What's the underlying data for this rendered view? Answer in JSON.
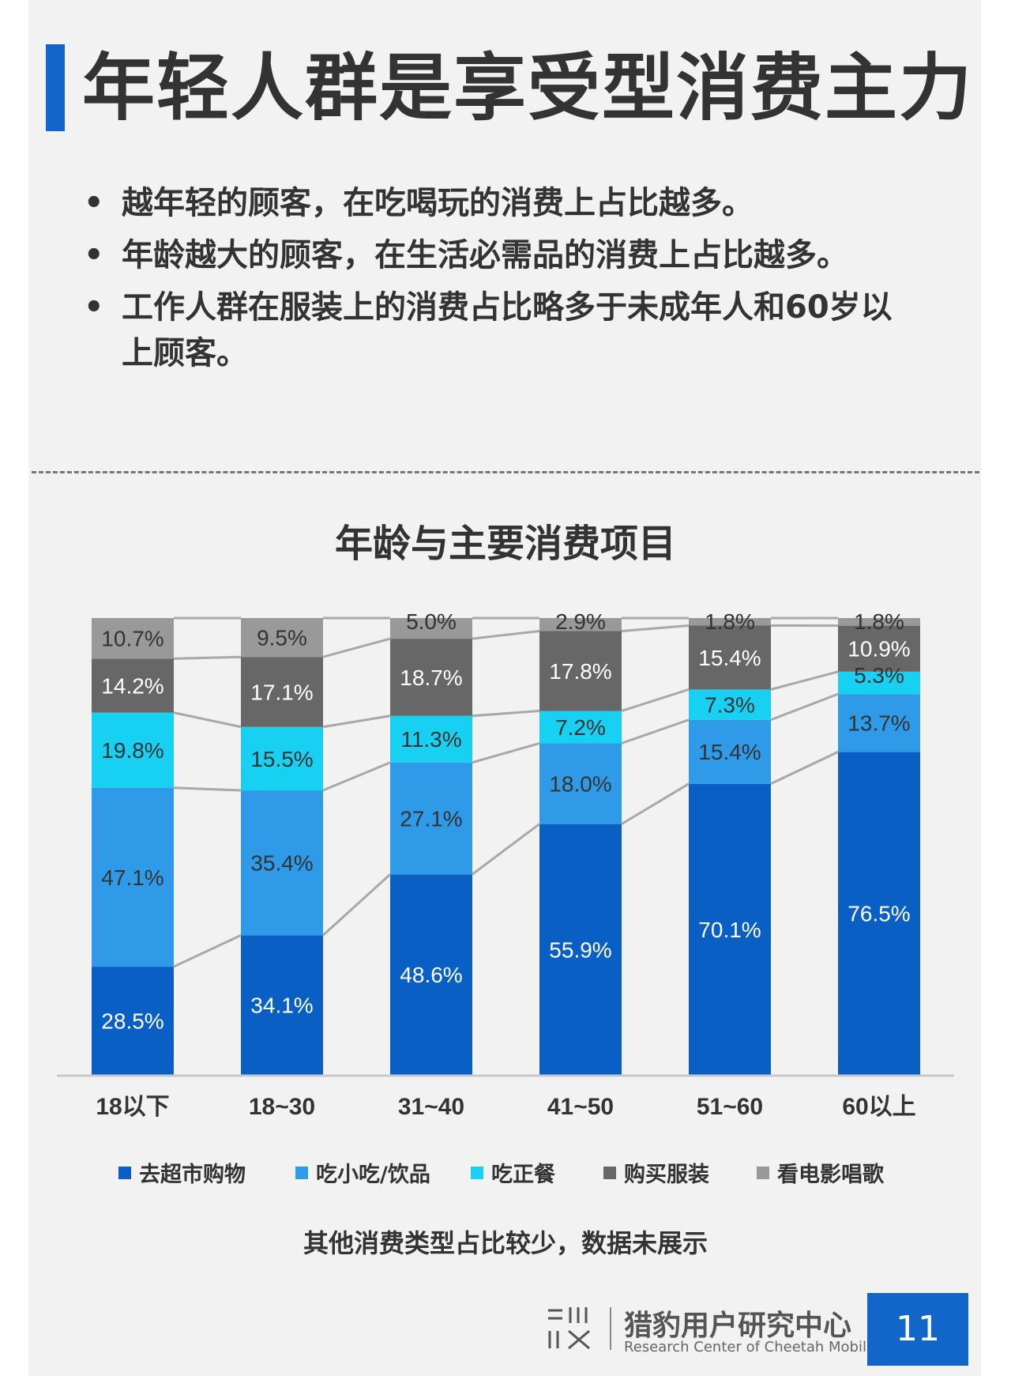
{
  "header": {
    "title": "年轻人群是享受型消费主力"
  },
  "bullets": [
    {
      "marker": "•",
      "text": "越年轻的顾客，在吃喝玩的消费上占比越多。"
    },
    {
      "marker": "•",
      "text": "年龄越大的顾客，在生活必需品的消费上占比越多。"
    },
    {
      "marker": "•",
      "text": "工作人群在服装上的消费占比略多于未成年人和60岁以上顾客。"
    }
  ],
  "chart_data": {
    "type": "bar",
    "stacked": true,
    "percent": true,
    "title": "年龄与主要消费项目",
    "categories": [
      "18以下",
      "18~30",
      "31~40",
      "41~50",
      "51~60",
      "60以上"
    ],
    "series": [
      {
        "name": "去超市购物",
        "color": "#0a5fc4",
        "values": [
          28.5,
          34.1,
          48.6,
          55.9,
          70.1,
          76.5
        ]
      },
      {
        "name": "吃小吃/饮品",
        "color": "#2f9be8",
        "values": [
          47.1,
          35.4,
          27.1,
          18.0,
          15.4,
          13.7
        ]
      },
      {
        "name": "吃正餐",
        "color": "#18d0f2",
        "values": [
          19.8,
          15.5,
          11.3,
          7.2,
          7.3,
          5.3
        ]
      },
      {
        "name": "购买服装",
        "color": "#676767",
        "values": [
          14.2,
          17.1,
          18.7,
          17.8,
          15.4,
          10.9
        ]
      },
      {
        "name": "看电影唱歌",
        "color": "#999999",
        "values": [
          10.7,
          9.5,
          5.0,
          2.9,
          1.8,
          1.8
        ]
      }
    ],
    "legend_position": "bottom",
    "grid": false
  },
  "note": "其他消费类型占比较少，数据未展示",
  "footer": {
    "org_name": "猎豹用户研究中心",
    "org_name_en": "Research Center of Cheetah Mobile",
    "page_number": "11"
  }
}
